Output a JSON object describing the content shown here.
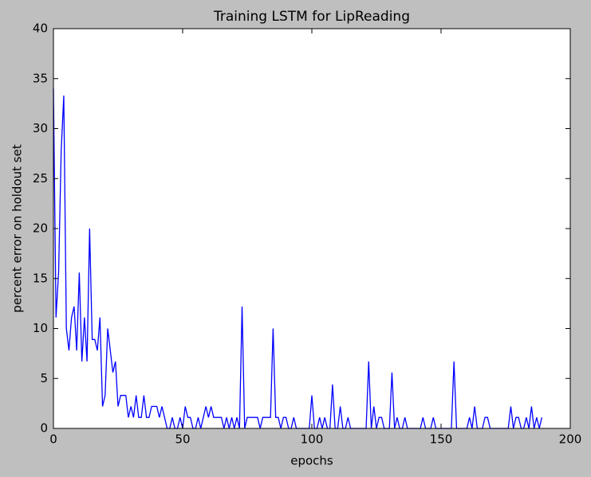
{
  "chart_data": {
    "type": "line",
    "title": "Training LSTM for LipReading",
    "x_label": "epochs",
    "y_label": "percent error on holdout set",
    "x": [
      0,
      1,
      2,
      3,
      4,
      5,
      6,
      7,
      8,
      9,
      10,
      11,
      12,
      13,
      14,
      15,
      16,
      17,
      18,
      19,
      20,
      21,
      22,
      23,
      24,
      25,
      26,
      27,
      28,
      29,
      30,
      31,
      32,
      33,
      34,
      35,
      36,
      37,
      38,
      39,
      40,
      41,
      42,
      43,
      44,
      45,
      46,
      47,
      48,
      49,
      50,
      51,
      52,
      53,
      54,
      55,
      56,
      57,
      58,
      59,
      60,
      61,
      62,
      63,
      64,
      65,
      66,
      67,
      68,
      69,
      70,
      71,
      72,
      73,
      74,
      75,
      76,
      77,
      78,
      79,
      80,
      81,
      82,
      83,
      84,
      85,
      86,
      87,
      88,
      89,
      90,
      91,
      92,
      93,
      94,
      95,
      96,
      97,
      98,
      99,
      100,
      101,
      102,
      103,
      104,
      105,
      106,
      107,
      108,
      109,
      110,
      111,
      112,
      113,
      114,
      115,
      116,
      117,
      118,
      119,
      120,
      121,
      122,
      123,
      124,
      125,
      126,
      127,
      128,
      129,
      130,
      131,
      132,
      133,
      134,
      135,
      136,
      137,
      138,
      139,
      140,
      141,
      142,
      143,
      144,
      145,
      146,
      147,
      148,
      149,
      150,
      151,
      152,
      153,
      154,
      155,
      156,
      157,
      158,
      159,
      160,
      161,
      162,
      163,
      164,
      165,
      166,
      167,
      168,
      169,
      170,
      171,
      172,
      173,
      174,
      175,
      176,
      177,
      178,
      179,
      180,
      181,
      182,
      183,
      184,
      185,
      186,
      187,
      188,
      189
    ],
    "series": [
      {
        "color": "#0000ff",
        "values": [
          34,
          11.1,
          15.6,
          27.8,
          33.3,
          10,
          7.8,
          11.1,
          12.2,
          7.8,
          15.6,
          6.7,
          11.1,
          6.7,
          20,
          8.9,
          8.9,
          7.8,
          11.1,
          2.2,
          3.3,
          10,
          7.8,
          5.6,
          6.7,
          2.2,
          3.3,
          3.3,
          3.3,
          1.1,
          2.2,
          1.1,
          3.3,
          1.1,
          1.1,
          3.3,
          1.1,
          1.1,
          2.2,
          2.2,
          2.2,
          1.1,
          2.2,
          1.1,
          0,
          0,
          1.1,
          0,
          0,
          1.1,
          0,
          2.2,
          1.1,
          1.1,
          0,
          0,
          1.1,
          0,
          1.1,
          2.2,
          1.1,
          2.2,
          1.1,
          1.1,
          1.1,
          1.1,
          0,
          1.1,
          0,
          1.1,
          0,
          1.1,
          0,
          12.2,
          0,
          1.1,
          1.1,
          1.1,
          1.1,
          1.1,
          0,
          1.1,
          1.1,
          1.1,
          1.1,
          10,
          1.1,
          1.1,
          0,
          1.1,
          1.1,
          0,
          0,
          1.1,
          0,
          0,
          0,
          0,
          0,
          0,
          3.3,
          0,
          0,
          1.1,
          0,
          1.1,
          0,
          0,
          4.4,
          0,
          0,
          2.2,
          0,
          0,
          1.1,
          0,
          0,
          0,
          0,
          0,
          0,
          0,
          6.7,
          0,
          2.2,
          0,
          1.1,
          1.1,
          0,
          0,
          0,
          5.6,
          0,
          1.1,
          0,
          0,
          1.1,
          0,
          0,
          0,
          0,
          0,
          0,
          1.1,
          0,
          0,
          0,
          1.1,
          0,
          0,
          0,
          0,
          0,
          0,
          0,
          6.7,
          0,
          0,
          0,
          0,
          0,
          1.1,
          0,
          2.2,
          0,
          0,
          0,
          1.1,
          1.1,
          0,
          0,
          0,
          0,
          0,
          0,
          0,
          0,
          2.2,
          0,
          1.1,
          1.1,
          0,
          0,
          1.1,
          0,
          2.2,
          0,
          1.1,
          0,
          1.1
        ]
      }
    ],
    "xlim": [
      0,
      200
    ],
    "xticks": [
      0,
      50,
      100,
      150,
      200
    ],
    "ylim": [
      0,
      40
    ],
    "yticks": [
      0,
      5,
      10,
      15,
      20,
      25,
      30,
      35,
      40
    ]
  }
}
